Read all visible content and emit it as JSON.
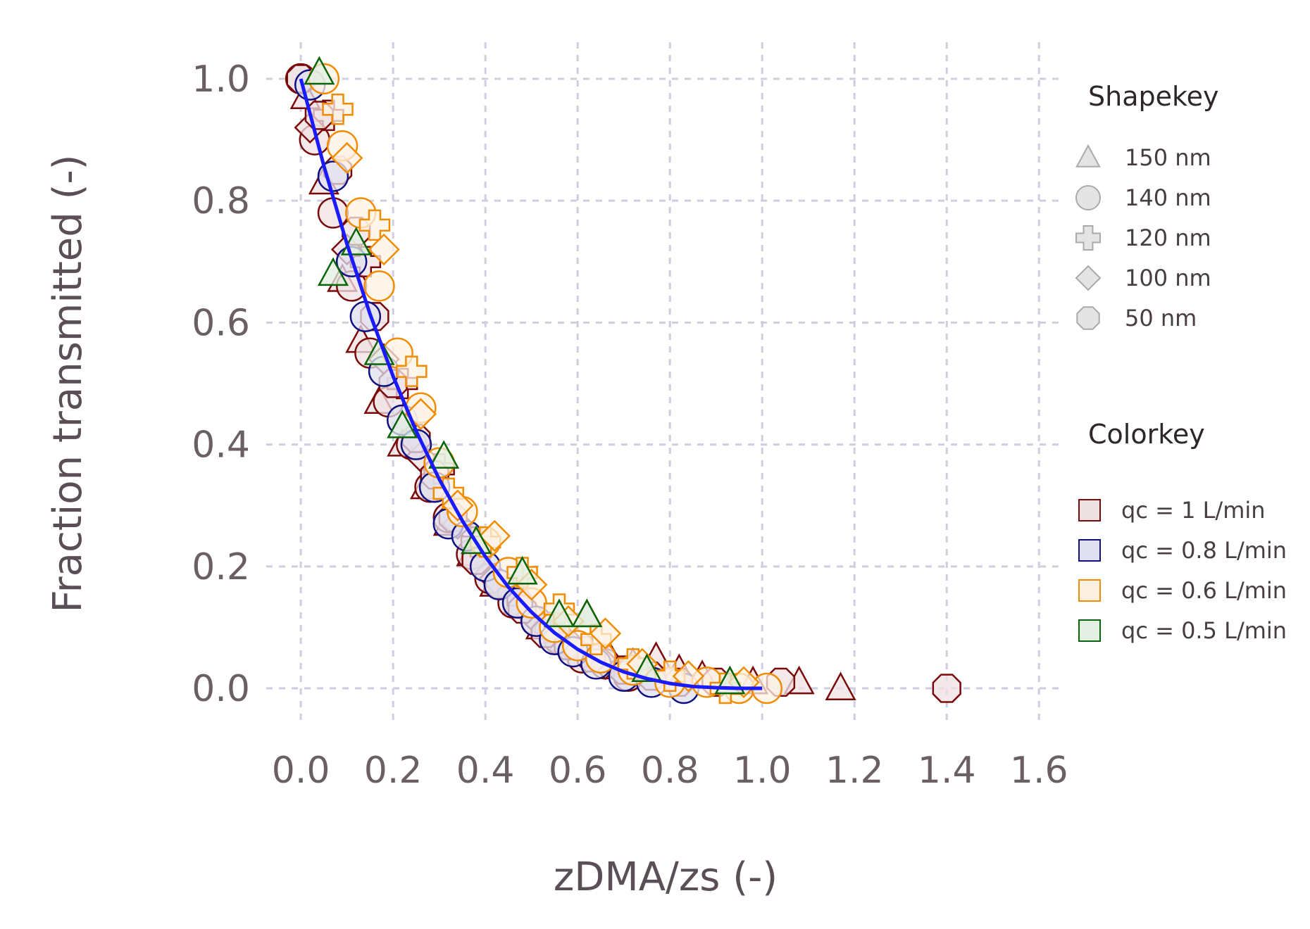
{
  "chart_data": {
    "type": "scatter",
    "xlabel": "zDMA/zs (-)",
    "ylabel": "Fraction transmitted (-)",
    "xlim": [
      -0.075,
      1.65
    ],
    "ylim": [
      -0.06,
      1.06
    ],
    "xticks": [
      "0.0",
      "0.2",
      "0.4",
      "0.6",
      "0.8",
      "1.0",
      "1.2",
      "1.4",
      "1.6"
    ],
    "yticks": [
      "0.0",
      "0.2",
      "0.4",
      "0.6",
      "0.8",
      "1.0"
    ],
    "grid": true,
    "legend_placement": "right",
    "shape_legend": {
      "title": "Shapekey",
      "items": [
        {
          "shape": "triangle",
          "label": "150 nm"
        },
        {
          "shape": "circle",
          "label": "140 nm"
        },
        {
          "shape": "plus",
          "label": "120 nm"
        },
        {
          "shape": "diamond",
          "label": "100 nm"
        },
        {
          "shape": "octagon",
          "label": "50 nm"
        }
      ]
    },
    "color_legend": {
      "title": "Colorkey",
      "items": [
        {
          "label": "qc = 1 L/min",
          "stroke": "#7a0a0a",
          "fill": "#efe2e4"
        },
        {
          "label": "qc = 0.8 L/min",
          "stroke": "#101080",
          "fill": "#e0e0ef"
        },
        {
          "label": "qc = 0.6 L/min",
          "stroke": "#f08c00",
          "fill": "#fdf1e4"
        },
        {
          "label": "qc = 0.5 L/min",
          "stroke": "#0a640a",
          "fill": "#e2efe2"
        }
      ]
    },
    "fit_line": {
      "color": "#1a1aff",
      "x": [
        0.0,
        0.05,
        0.1,
        0.15,
        0.2,
        0.25,
        0.3,
        0.35,
        0.4,
        0.45,
        0.5,
        0.55,
        0.6,
        0.65,
        0.7,
        0.75,
        0.8,
        0.85,
        0.9,
        0.95,
        1.0
      ],
      "y": [
        1.0,
        0.857,
        0.729,
        0.614,
        0.512,
        0.422,
        0.343,
        0.275,
        0.216,
        0.166,
        0.125,
        0.091,
        0.064,
        0.043,
        0.027,
        0.016,
        0.008,
        0.003,
        0.001,
        0.0,
        0.0
      ]
    },
    "series": [
      {
        "qc": "1",
        "shape": "triangle",
        "x": [
          0.01,
          0.05,
          0.09,
          0.13,
          0.17,
          0.22,
          0.27,
          0.32,
          0.37,
          0.42,
          0.47,
          0.52,
          0.57,
          0.62,
          0.67,
          0.72,
          0.77,
          0.82,
          0.87,
          0.93,
          0.98,
          1.08,
          1.17
        ],
        "y": [
          0.97,
          0.83,
          0.67,
          0.57,
          0.47,
          0.4,
          0.33,
          0.27,
          0.22,
          0.17,
          0.14,
          0.1,
          0.08,
          0.12,
          0.05,
          0.04,
          0.05,
          0.03,
          0.02,
          0.01,
          0.01,
          0.01,
          0.0
        ]
      },
      {
        "qc": "1",
        "shape": "circle",
        "x": [
          0.0,
          0.03,
          0.07,
          0.11,
          0.15,
          0.19,
          0.24,
          0.28,
          0.32,
          0.37,
          0.41,
          0.46,
          0.51,
          0.56,
          0.61,
          0.66,
          0.71
        ],
        "y": [
          1.0,
          0.9,
          0.78,
          0.66,
          0.55,
          0.47,
          0.4,
          0.33,
          0.28,
          0.22,
          0.18,
          0.14,
          0.11,
          0.08,
          0.05,
          0.04,
          0.02
        ]
      },
      {
        "qc": "1",
        "shape": "plus",
        "x": [
          0.06,
          0.14,
          0.22,
          0.3,
          0.38,
          0.46,
          0.54,
          0.62
        ],
        "y": [
          0.94,
          0.7,
          0.5,
          0.36,
          0.24,
          0.16,
          0.1,
          0.06
        ]
      },
      {
        "qc": "1",
        "shape": "diamond",
        "x": [
          0.02,
          0.1,
          0.18,
          0.26,
          0.34,
          0.42,
          0.5,
          0.58,
          0.66
        ],
        "y": [
          0.92,
          0.72,
          0.54,
          0.38,
          0.27,
          0.18,
          0.12,
          0.07,
          0.04
        ]
      },
      {
        "qc": "1",
        "shape": "octagon",
        "x": [
          0.0,
          0.04,
          0.08,
          0.12,
          0.16,
          0.2,
          0.25,
          0.29,
          0.33,
          0.38,
          0.43,
          0.48,
          0.53,
          0.58,
          0.63,
          0.7,
          0.76,
          0.82,
          0.9,
          1.04,
          1.4
        ],
        "y": [
          1.0,
          0.94,
          0.85,
          0.75,
          0.61,
          0.5,
          0.41,
          0.35,
          0.28,
          0.21,
          0.17,
          0.13,
          0.09,
          0.07,
          0.05,
          0.03,
          0.02,
          0.01,
          0.01,
          0.01,
          0.0
        ]
      },
      {
        "qc": "0.8",
        "shape": "circle",
        "x": [
          0.02,
          0.07,
          0.11,
          0.14,
          0.18,
          0.22,
          0.25,
          0.29,
          0.32,
          0.36,
          0.4,
          0.43,
          0.47,
          0.51,
          0.55,
          0.59,
          0.64,
          0.7,
          0.76,
          0.83
        ],
        "y": [
          0.99,
          0.84,
          0.7,
          0.61,
          0.52,
          0.44,
          0.4,
          0.33,
          0.27,
          0.25,
          0.2,
          0.17,
          0.14,
          0.11,
          0.08,
          0.06,
          0.04,
          0.02,
          0.01,
          0.0
        ]
      },
      {
        "qc": "0.6",
        "shape": "circle",
        "x": [
          0.05,
          0.09,
          0.13,
          0.17,
          0.21,
          0.26,
          0.3,
          0.35,
          0.4,
          0.45,
          0.5,
          0.55,
          0.6,
          0.65,
          0.72,
          0.8,
          0.88,
          0.95,
          1.01
        ],
        "y": [
          1.0,
          0.89,
          0.78,
          0.66,
          0.55,
          0.46,
          0.37,
          0.29,
          0.24,
          0.19,
          0.14,
          0.1,
          0.07,
          0.05,
          0.03,
          0.01,
          0.01,
          0.0,
          0.0
        ]
      },
      {
        "qc": "0.6",
        "shape": "plus",
        "x": [
          0.08,
          0.16,
          0.24,
          0.32,
          0.4,
          0.48,
          0.56,
          0.64,
          0.72,
          0.8,
          0.92
        ],
        "y": [
          0.95,
          0.76,
          0.52,
          0.32,
          0.24,
          0.19,
          0.13,
          0.08,
          0.04,
          0.02,
          0.0
        ]
      },
      {
        "qc": "0.6",
        "shape": "diamond",
        "x": [
          0.1,
          0.18,
          0.26,
          0.34,
          0.42,
          0.5,
          0.58,
          0.66,
          0.74,
          0.84,
          0.96
        ],
        "y": [
          0.87,
          0.72,
          0.45,
          0.3,
          0.25,
          0.17,
          0.11,
          0.09,
          0.04,
          0.02,
          0.01
        ]
      },
      {
        "qc": "0.5",
        "shape": "triangle",
        "x": [
          0.04,
          0.07,
          0.12,
          0.17,
          0.22,
          0.31,
          0.38,
          0.48,
          0.56,
          0.62,
          0.75,
          0.93
        ],
        "y": [
          1.01,
          0.68,
          0.73,
          0.55,
          0.43,
          0.38,
          0.24,
          0.19,
          0.12,
          0.12,
          0.03,
          0.01
        ]
      }
    ]
  }
}
